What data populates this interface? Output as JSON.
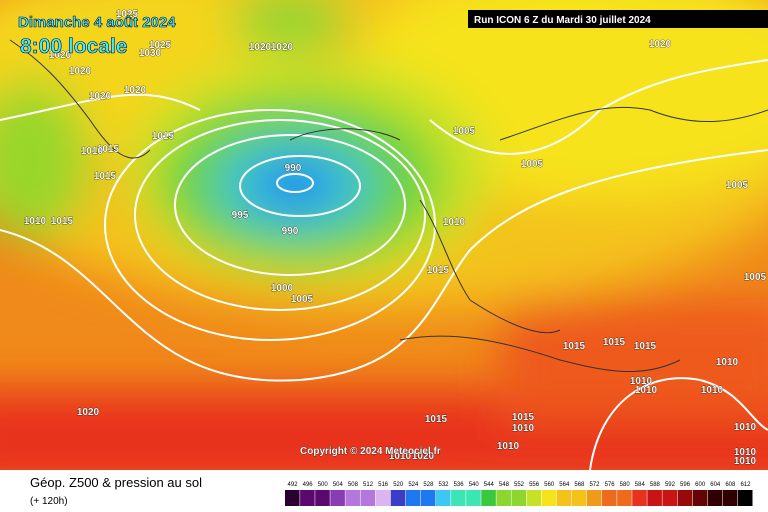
{
  "header": {
    "date": "Dimanche 4 août 2024",
    "time": "8:00 locale",
    "run": "Run ICON 6 Z du Mardi 30 juillet 2024"
  },
  "copyright": "Copyright © 2024 Meteociel.fr",
  "legend": {
    "title": "Géop. Z500 & pression au sol",
    "lead": "(+ 120h)",
    "ticks": [
      492,
      496,
      500,
      504,
      508,
      512,
      516,
      520,
      524,
      528,
      532,
      536,
      540,
      544,
      548,
      552,
      556,
      560,
      564,
      568,
      572,
      576,
      580,
      584,
      588,
      592,
      596,
      600,
      604,
      608,
      612
    ]
  },
  "isobar_labels": [
    "1020",
    "1020",
    "1020",
    "1020",
    "1025",
    "1025",
    "1030",
    "1020",
    "1020",
    "1015",
    "1015",
    "1010",
    "1015",
    "1010",
    "1015",
    "990",
    "995",
    "990",
    "1000",
    "1005",
    "1005",
    "1005",
    "1005",
    "1010",
    "1015",
    "1005",
    "1015",
    "1015",
    "1015",
    "1010",
    "1010",
    "1010",
    "1010",
    "1020",
    "1015",
    "1015",
    "1010",
    "1010",
    "1010",
    "1010",
    "1010",
    "1010",
    "1020",
    "1020"
  ]
}
